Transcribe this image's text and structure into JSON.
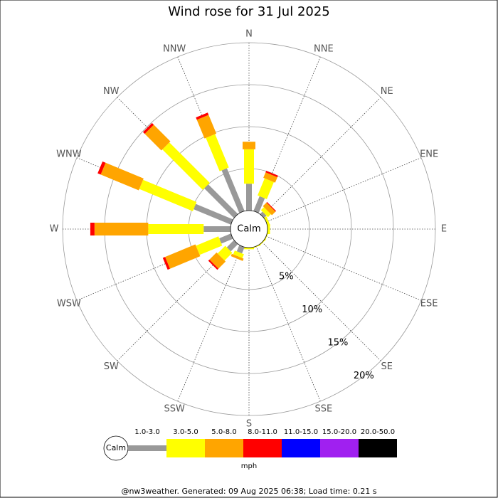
{
  "chart_data": {
    "type": "windrose",
    "title": "Wind rose for 31 Jul 2025",
    "calm_label": "Calm",
    "categories": [
      "N",
      "NNE",
      "NE",
      "ENE",
      "E",
      "ESE",
      "SE",
      "SSE",
      "S",
      "SSW",
      "SW",
      "WSW",
      "W",
      "WNW",
      "NW",
      "NNW"
    ],
    "rlim": [
      0,
      20
    ],
    "rticks": [
      {
        "value": 5,
        "label": "5%"
      },
      {
        "value": 10,
        "label": "10%"
      },
      {
        "value": 15,
        "label": "15%"
      },
      {
        "value": 20,
        "label": "20%"
      }
    ],
    "legend_unit": "mph",
    "series": [
      {
        "name": "1.0-3.0",
        "color": "#999999",
        "values": [
          3.2,
          1.9,
          0.4,
          0,
          0,
          0,
          0,
          0,
          0,
          0.8,
          1.2,
          1.5,
          3.2,
          4.8,
          5.0,
          5.5
        ]
      },
      {
        "name": "3.0-5.0",
        "color": "#ffff00",
        "values": [
          4.1,
          2.2,
          0.5,
          0.3,
          0.3,
          0.1,
          0.1,
          0.1,
          0.2,
          0.5,
          1.3,
          2.9,
          6.6,
          6.9,
          6.8,
          4.3
        ]
      },
      {
        "name": "5.0-8.0",
        "color": "#ffa500",
        "values": [
          0.9,
          0.7,
          0.6,
          0,
          0,
          0,
          0,
          0,
          0,
          0.3,
          1.2,
          3.9,
          6.4,
          4.9,
          2.8,
          2.4
        ]
      },
      {
        "name": "8.0-11.0",
        "color": "#ff0000",
        "values": [
          0,
          0.2,
          0.1,
          0,
          0,
          0,
          0,
          0,
          0,
          0,
          0.2,
          0.3,
          0.5,
          0.4,
          0.3,
          0.3
        ]
      },
      {
        "name": "11.0-15.0",
        "color": "#0000ff",
        "values": [
          0,
          0,
          0,
          0,
          0,
          0,
          0,
          0,
          0,
          0,
          0,
          0,
          0,
          0,
          0,
          0
        ]
      },
      {
        "name": "15.0-20.0",
        "color": "#a020f0",
        "values": [
          0,
          0,
          0,
          0,
          0,
          0,
          0,
          0,
          0,
          0,
          0,
          0,
          0,
          0,
          0,
          0
        ]
      },
      {
        "name": "20.0-50.0",
        "color": "#000000",
        "values": [
          0,
          0,
          0,
          0,
          0,
          0,
          0,
          0,
          0,
          0,
          0,
          0,
          0,
          0,
          0,
          0
        ]
      }
    ],
    "footer": "@nw3weather. Generated: 09 Aug 2025 06:38; Load time: 0.21 s"
  }
}
